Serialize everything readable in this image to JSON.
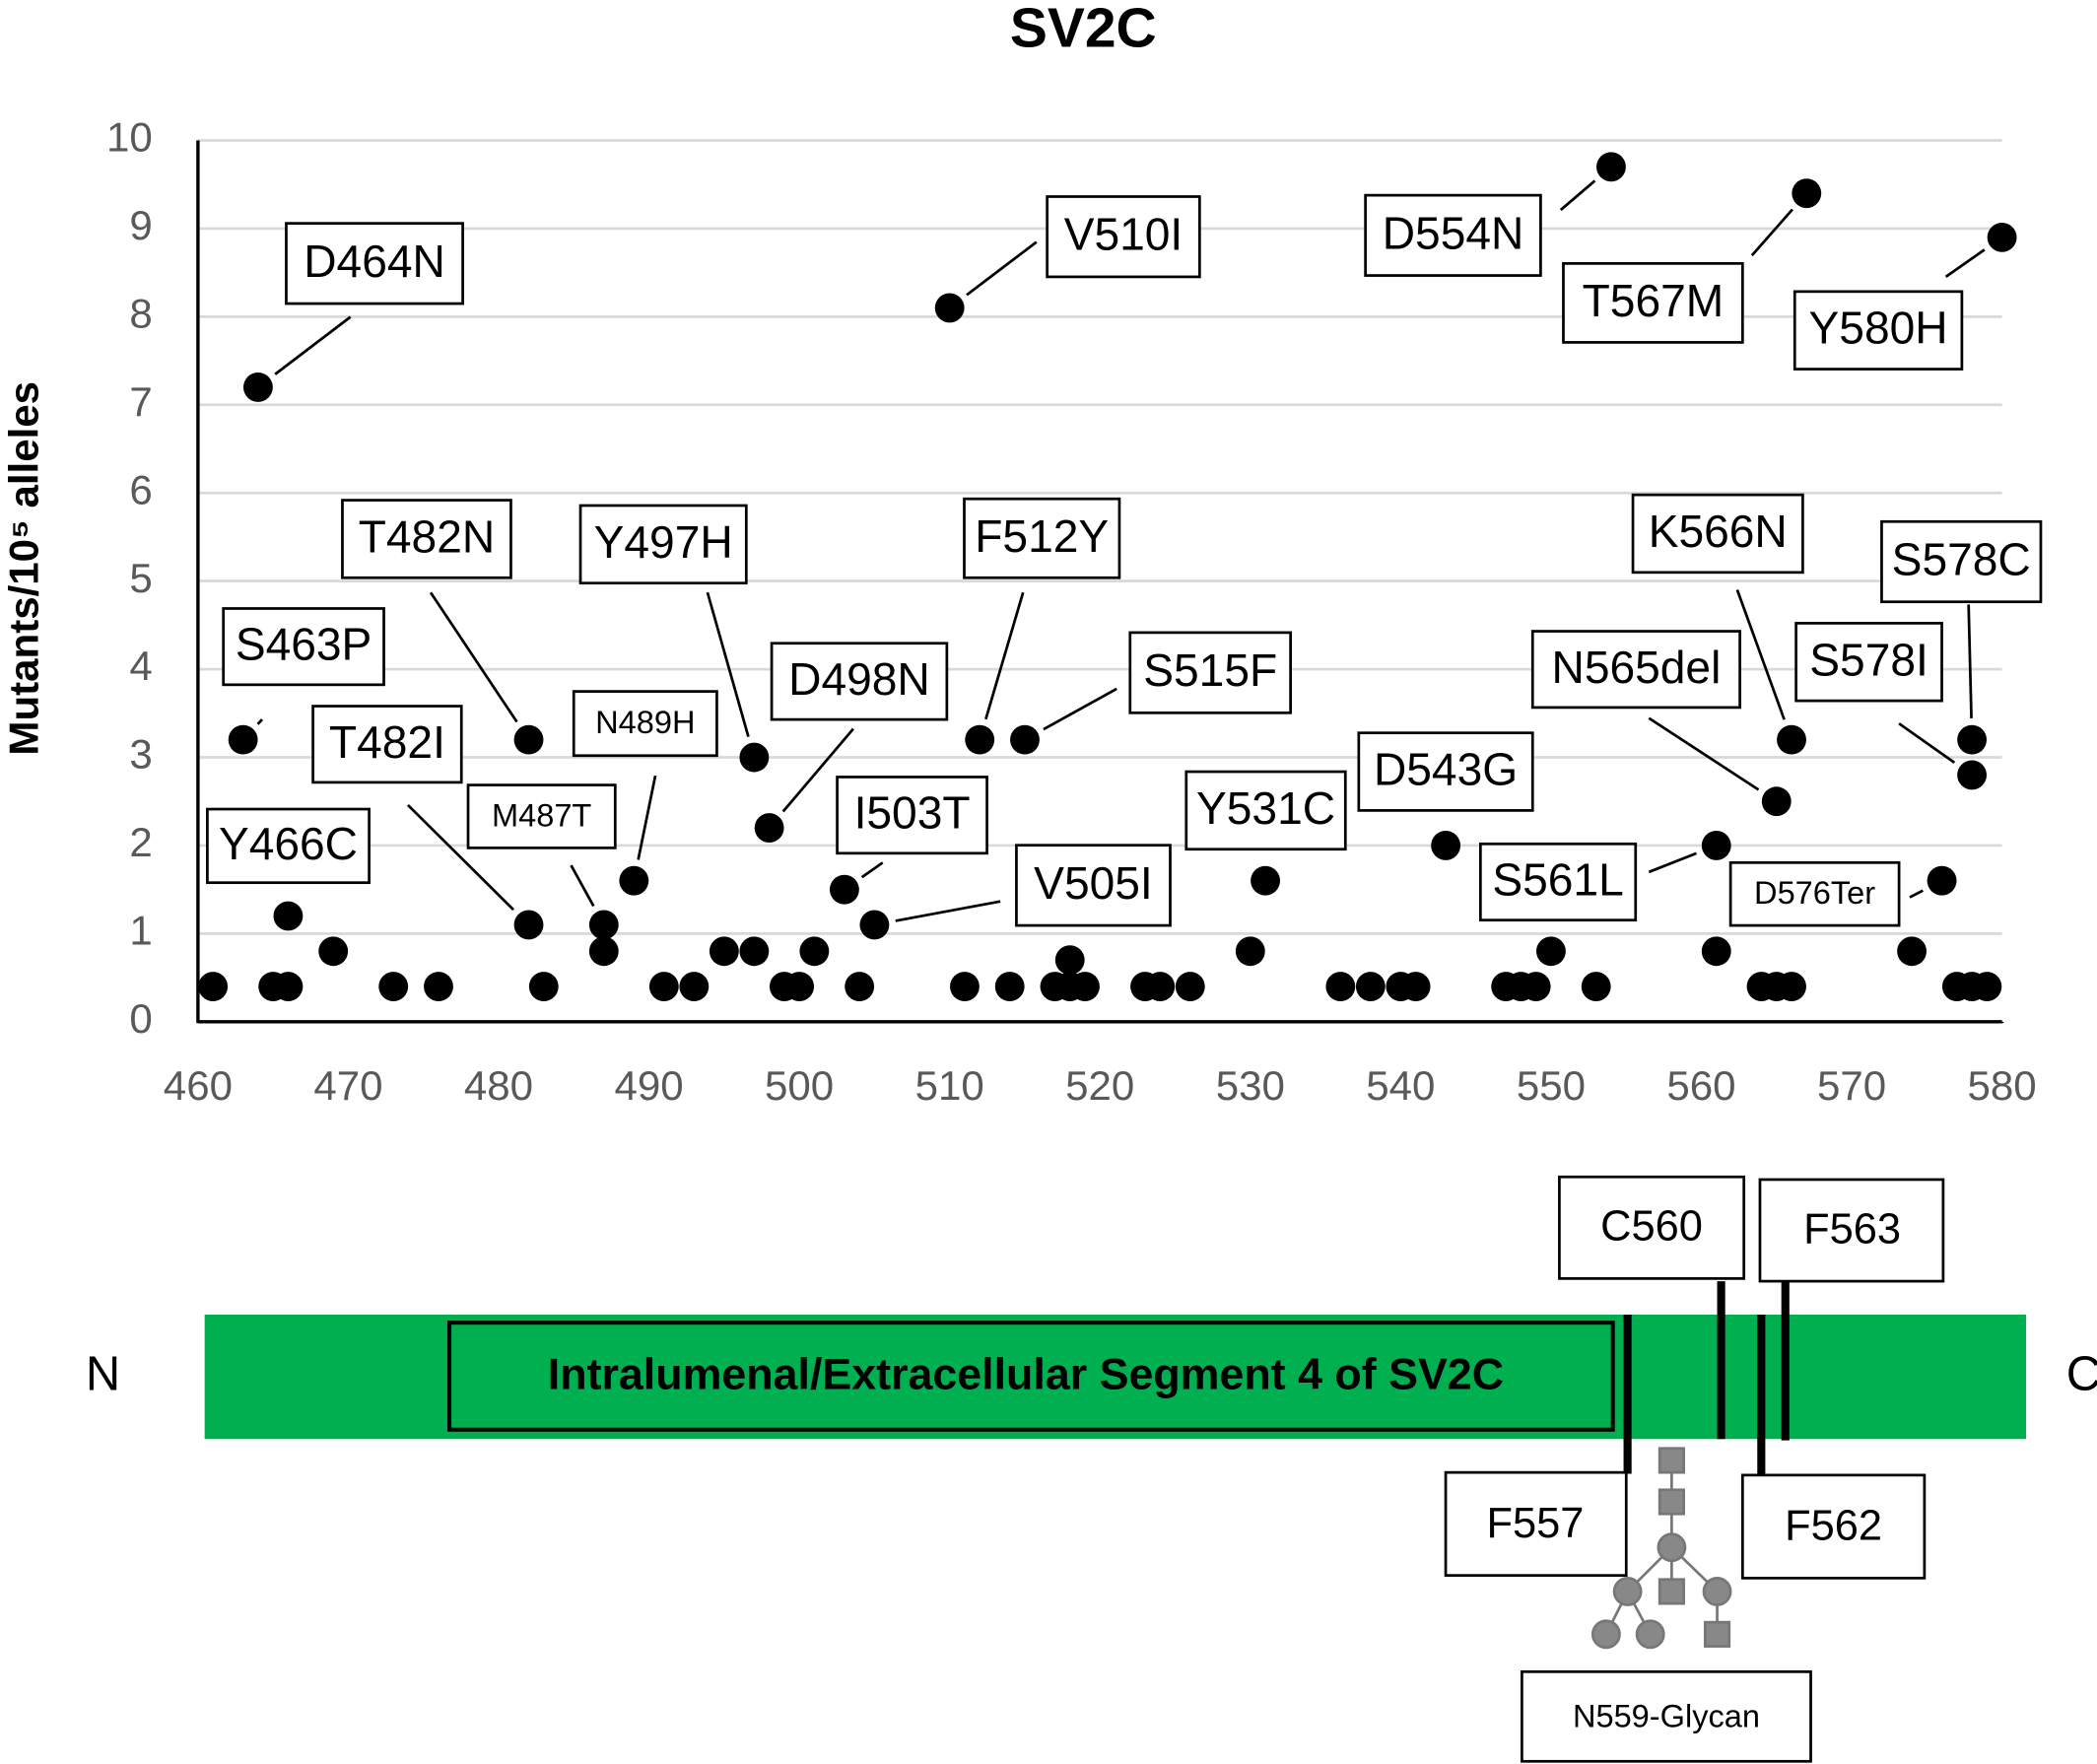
{
  "chart_data": {
    "type": "scatter",
    "title": "SV2C",
    "y_label": "Mutants/10⁵ alleles",
    "color": "#000000",
    "grid": true,
    "xlim": [
      460,
      580
    ],
    "xticks": [
      460,
      470,
      480,
      490,
      500,
      510,
      520,
      530,
      540,
      550,
      560,
      570,
      580
    ],
    "ylim": [
      0,
      10
    ],
    "yticks": [
      0,
      1,
      2,
      3,
      4,
      5,
      6,
      7,
      8,
      9,
      10
    ],
    "x": [
      461,
      463,
      464,
      465,
      466,
      466,
      469,
      473,
      476,
      482,
      482,
      483,
      487,
      487,
      489,
      491,
      493,
      495,
      497,
      497,
      498,
      499,
      500,
      501,
      503,
      504,
      505,
      510,
      511,
      512,
      514,
      515,
      517,
      518,
      518,
      519,
      523,
      524,
      526,
      530,
      531,
      536,
      538,
      540,
      541,
      543,
      547,
      548,
      549,
      550,
      553,
      554,
      561,
      561,
      564,
      565,
      565,
      566,
      566,
      567,
      574,
      576,
      577,
      578,
      578,
      578,
      579,
      580
    ],
    "values": [
      0.4,
      3.2,
      7.2,
      0.4,
      1.2,
      0.4,
      0.8,
      0.4,
      0.4,
      3.2,
      1.1,
      0.4,
      1.1,
      0.8,
      1.6,
      0.4,
      0.4,
      0.8,
      3.0,
      0.8,
      2.2,
      0.4,
      0.4,
      0.8,
      1.5,
      0.4,
      1.1,
      8.1,
      0.4,
      3.2,
      0.4,
      3.2,
      0.4,
      0.7,
      0.4,
      0.4,
      0.4,
      0.4,
      0.4,
      0.8,
      1.6,
      0.4,
      0.4,
      0.4,
      0.4,
      2.0,
      0.4,
      0.4,
      0.4,
      0.8,
      0.4,
      9.7,
      2.0,
      0.8,
      0.4,
      2.5,
      0.4,
      3.2,
      0.4,
      9.4,
      0.8,
      1.6,
      0.4,
      3.2,
      2.8,
      0.4,
      0.4,
      8.9
    ],
    "annotations": [
      {
        "text": "D464N",
        "x": 464,
        "y": 7.2
      },
      {
        "text": "V510I",
        "x": 510,
        "y": 8.1
      },
      {
        "text": "D554N",
        "x": 554,
        "y": 9.7
      },
      {
        "text": "T567M",
        "x": 567,
        "y": 9.4
      },
      {
        "text": "Y580H",
        "x": 580,
        "y": 8.9
      },
      {
        "text": "S463P",
        "x": 463,
        "y": 3.2
      },
      {
        "text": "T482N",
        "x": 482,
        "y": 3.2
      },
      {
        "text": "Y497H",
        "x": 497,
        "y": 3.0
      },
      {
        "text": "F512Y",
        "x": 512,
        "y": 3.2
      },
      {
        "text": "S515F",
        "x": 515,
        "y": 3.2
      },
      {
        "text": "K566N",
        "x": 566,
        "y": 3.2
      },
      {
        "text": "S578C",
        "x": 578,
        "y": 3.2
      },
      {
        "text": "N565del",
        "x": 565,
        "y": 2.5
      },
      {
        "text": "S578I",
        "x": 578,
        "y": 2.8
      },
      {
        "text": "T482I",
        "x": 482,
        "y": 1.1
      },
      {
        "text": "N489H",
        "x": 489,
        "y": 1.6
      },
      {
        "text": "M487T",
        "x": 487,
        "y": 1.1
      },
      {
        "text": "D498N",
        "x": 498,
        "y": 2.2
      },
      {
        "text": "Y466C"
      },
      {
        "text": "I503T",
        "x": 503,
        "y": 1.5
      },
      {
        "text": "V505I",
        "x": 505,
        "y": 1.1
      },
      {
        "text": "Y531C"
      },
      {
        "text": "D543G"
      },
      {
        "text": "S561L",
        "x": 561,
        "y": 2.0
      },
      {
        "text": "D576Ter",
        "x": 576,
        "y": 1.6
      }
    ]
  },
  "diagram": {
    "n_terminus": "N",
    "c_terminus": "C",
    "segment_label": "Intralumenal/Extracellular Segment 4 of SV2C",
    "sites": [
      "C560",
      "F563",
      "F557",
      "F562"
    ],
    "glycan_label": "N559-Glycan"
  }
}
